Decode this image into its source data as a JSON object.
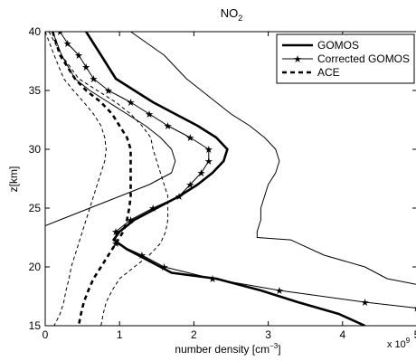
{
  "chart_data": {
    "type": "line",
    "title": "NO",
    "title_subscript": "2",
    "xlabel": "number density [cm",
    "xlabel_superscript": "−3",
    "xlabel_end": "]",
    "ylabel": "z[km]",
    "x_scale_note": "x 10",
    "x_scale_exponent": "9",
    "xlim": [
      0,
      5
    ],
    "ylim": [
      15,
      40
    ],
    "x_ticks": [
      0,
      1,
      2,
      3,
      4,
      5
    ],
    "y_ticks": [
      15,
      20,
      25,
      30,
      35,
      40
    ],
    "grid": false,
    "legend_position": "top-right",
    "legend": [
      {
        "label": "GOMOS",
        "style": "thick-solid"
      },
      {
        "label": "Corrected GOMOS",
        "style": "thin-solid-star"
      },
      {
        "label": "ACE",
        "style": "thick-dashed"
      }
    ],
    "series": [
      {
        "name": "GOMOS",
        "style": "thick-solid",
        "points": [
          [
            0.55,
            40
          ],
          [
            0.75,
            38
          ],
          [
            0.95,
            36
          ],
          [
            1.2,
            35
          ],
          [
            1.45,
            34
          ],
          [
            1.75,
            33
          ],
          [
            2.05,
            32
          ],
          [
            2.3,
            31
          ],
          [
            2.45,
            30
          ],
          [
            2.4,
            29
          ],
          [
            2.25,
            28
          ],
          [
            2.05,
            27
          ],
          [
            1.8,
            26
          ],
          [
            1.5,
            25
          ],
          [
            1.2,
            24
          ],
          [
            1.0,
            23
          ],
          [
            0.92,
            22.3
          ],
          [
            1.1,
            21.5
          ],
          [
            1.4,
            20.5
          ],
          [
            1.7,
            19.5
          ],
          [
            2.3,
            19
          ],
          [
            2.9,
            18
          ],
          [
            3.4,
            17
          ],
          [
            3.95,
            16
          ],
          [
            4.3,
            15
          ]
        ]
      },
      {
        "name": "Corrected GOMOS",
        "style": "thin-solid-star",
        "points": [
          [
            0.2,
            40
          ],
          [
            0.3,
            39
          ],
          [
            0.45,
            38
          ],
          [
            0.55,
            37
          ],
          [
            0.65,
            36
          ],
          [
            0.85,
            35
          ],
          [
            1.15,
            34
          ],
          [
            1.4,
            33
          ],
          [
            1.65,
            32
          ],
          [
            1.95,
            31
          ],
          [
            2.2,
            30
          ],
          [
            2.2,
            29
          ],
          [
            2.1,
            28
          ],
          [
            1.95,
            27
          ],
          [
            1.8,
            26
          ],
          [
            1.45,
            25
          ],
          [
            1.15,
            24
          ],
          [
            0.95,
            23
          ],
          [
            0.95,
            22
          ],
          [
            1.3,
            21
          ],
          [
            1.6,
            20
          ],
          [
            2.25,
            19
          ],
          [
            3.15,
            18
          ],
          [
            4.3,
            17
          ],
          [
            5.0,
            16.5
          ]
        ]
      },
      {
        "name": "Corrected GOMOS upper",
        "style": "thin-solid",
        "points": [
          [
            1.15,
            40
          ],
          [
            1.6,
            38
          ],
          [
            1.9,
            36
          ],
          [
            2.1,
            35
          ],
          [
            2.3,
            34
          ],
          [
            2.5,
            33
          ],
          [
            2.75,
            32
          ],
          [
            2.95,
            31
          ],
          [
            3.1,
            30
          ],
          [
            3.15,
            29
          ],
          [
            3.1,
            28
          ],
          [
            3.0,
            27
          ],
          [
            2.95,
            26
          ],
          [
            2.9,
            25
          ],
          [
            2.9,
            24
          ],
          [
            2.85,
            23
          ],
          [
            2.85,
            22.5
          ],
          [
            3.3,
            22.3
          ],
          [
            3.75,
            21
          ],
          [
            4.3,
            20
          ],
          [
            4.6,
            19
          ],
          [
            5.0,
            18.5
          ]
        ]
      },
      {
        "name": "Corrected GOMOS lower",
        "style": "thin-solid",
        "points": [
          [
            0.1,
            40
          ],
          [
            0.22,
            38
          ],
          [
            0.4,
            36
          ],
          [
            0.6,
            35
          ],
          [
            0.85,
            34
          ],
          [
            1.1,
            33
          ],
          [
            1.35,
            32
          ],
          [
            1.55,
            31
          ],
          [
            1.7,
            30
          ],
          [
            1.75,
            29
          ],
          [
            1.7,
            28
          ],
          [
            1.4,
            27
          ],
          [
            1.0,
            26
          ],
          [
            0.6,
            25
          ],
          [
            0.2,
            24
          ],
          [
            0.0,
            23.5
          ]
        ]
      },
      {
        "name": "ACE",
        "style": "thick-dashed",
        "points": [
          [
            0.1,
            40
          ],
          [
            0.2,
            38
          ],
          [
            0.4,
            36
          ],
          [
            0.55,
            35
          ],
          [
            0.75,
            34
          ],
          [
            0.9,
            33
          ],
          [
            1.0,
            32
          ],
          [
            1.1,
            31
          ],
          [
            1.15,
            30
          ],
          [
            1.15,
            29
          ],
          [
            1.15,
            28
          ],
          [
            1.15,
            27
          ],
          [
            1.15,
            26
          ],
          [
            1.13,
            25
          ],
          [
            1.1,
            24
          ],
          [
            1.05,
            23
          ],
          [
            0.95,
            22
          ],
          [
            0.85,
            21
          ],
          [
            0.75,
            20
          ],
          [
            0.65,
            19
          ],
          [
            0.58,
            18
          ],
          [
            0.52,
            17
          ],
          [
            0.48,
            16
          ],
          [
            0.45,
            15
          ]
        ]
      },
      {
        "name": "ACE upper",
        "style": "thin-dashed",
        "points": [
          [
            0.05,
            40
          ],
          [
            0.22,
            38
          ],
          [
            0.45,
            36
          ],
          [
            0.7,
            35
          ],
          [
            0.95,
            34
          ],
          [
            1.15,
            33
          ],
          [
            1.3,
            32
          ],
          [
            1.42,
            31
          ],
          [
            1.45,
            30
          ],
          [
            1.5,
            29
          ],
          [
            1.55,
            28
          ],
          [
            1.6,
            27
          ],
          [
            1.65,
            26
          ],
          [
            1.65,
            25
          ],
          [
            1.65,
            24
          ],
          [
            1.62,
            23
          ],
          [
            1.55,
            22
          ],
          [
            1.4,
            21
          ],
          [
            1.2,
            20
          ],
          [
            1.0,
            19
          ],
          [
            0.9,
            18
          ],
          [
            0.82,
            17
          ],
          [
            0.78,
            16
          ],
          [
            0.75,
            15
          ]
        ]
      },
      {
        "name": "ACE lower",
        "style": "thin-dashed",
        "points": [
          [
            0.0,
            40
          ],
          [
            0.12,
            38
          ],
          [
            0.25,
            36
          ],
          [
            0.38,
            35
          ],
          [
            0.52,
            34
          ],
          [
            0.65,
            33
          ],
          [
            0.75,
            32
          ],
          [
            0.8,
            31
          ],
          [
            0.82,
            30
          ],
          [
            0.8,
            29
          ],
          [
            0.75,
            28
          ],
          [
            0.7,
            27
          ],
          [
            0.65,
            26
          ],
          [
            0.6,
            25
          ],
          [
            0.55,
            24
          ],
          [
            0.5,
            23
          ],
          [
            0.45,
            22
          ],
          [
            0.4,
            21
          ],
          [
            0.35,
            20
          ],
          [
            0.32,
            19
          ],
          [
            0.28,
            18
          ],
          [
            0.25,
            17
          ],
          [
            0.2,
            16
          ],
          [
            0.12,
            15
          ]
        ]
      }
    ]
  }
}
